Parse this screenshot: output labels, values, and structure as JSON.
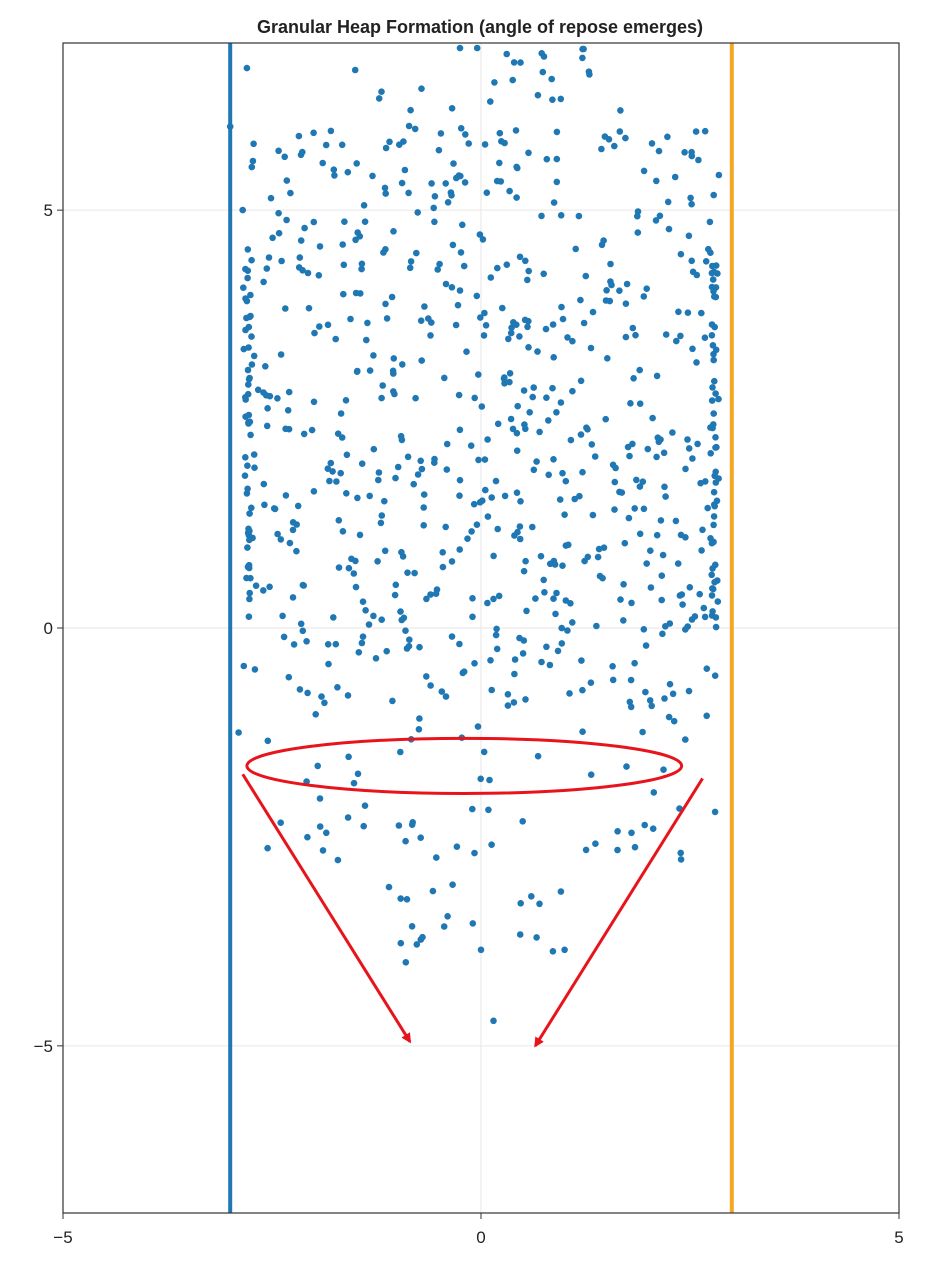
{
  "chart_data": {
    "type": "scatter",
    "title": "Granular Heap Formation (angle of repose emerges)",
    "xlabel": "",
    "ylabel": "",
    "xlim": [
      -5,
      5
    ],
    "ylim": [
      -7,
      7
    ],
    "x_ticks": [
      -5,
      0,
      5
    ],
    "y_ticks": [
      -5,
      0,
      5
    ],
    "x_tick_labels": [
      "−5",
      "0",
      "5"
    ],
    "y_tick_labels": [
      "−5",
      "0",
      "5"
    ],
    "grid": true,
    "legend": "none",
    "marker_color": "#1f77b4",
    "walls": [
      {
        "x": -3.0,
        "color": "#1f77b4"
      },
      {
        "x": 3.0,
        "color": "#f5a623"
      }
    ],
    "annotation": {
      "type": "ellipse-with-arrows",
      "color": "#e8141c",
      "ellipse": {
        "cx": -0.2,
        "cy": -1.65,
        "rx": 2.6,
        "ry": 0.33
      },
      "arrows": [
        {
          "from": [
            -2.85,
            -1.75
          ],
          "to": [
            -0.85,
            -4.95
          ]
        },
        {
          "from": [
            2.65,
            -1.8
          ],
          "to": [
            0.65,
            -5.0
          ]
        }
      ]
    },
    "scatter_generation": {
      "dense_region": {
        "x_range": [
          -2.85,
          2.85
        ],
        "y_range": [
          -0.9,
          6.0
        ],
        "count": 650
      },
      "top_region": {
        "x_range": [
          -1.8,
          1.8
        ],
        "y_range": [
          5.9,
          7.0
        ],
        "count": 30
      },
      "wall_columns": {
        "left_x": -2.82,
        "right_x": 2.82,
        "y_range": [
          0.0,
          4.5
        ],
        "count_each": 40
      },
      "lower_region": {
        "x_range": [
          -2.6,
          2.6
        ],
        "y_range": [
          -2.8,
          -0.9
        ],
        "count": 60
      },
      "funnel_region": {
        "x_range": [
          -1.2,
          1.3
        ],
        "y_range": [
          -4.0,
          -2.8
        ],
        "count": 16
      }
    },
    "extra_points": [
      [
        -2.8,
        6.7
      ],
      [
        -2.85,
        5.0
      ],
      [
        -3.0,
        6.0
      ],
      [
        2.6,
        5.6
      ],
      [
        2.8,
        -2.2
      ],
      [
        -0.9,
        -4.0
      ],
      [
        0.15,
        -4.7
      ],
      [
        0.0,
        -3.85
      ],
      [
        1.0,
        -3.85
      ],
      [
        -0.7,
        -3.7
      ],
      [
        -1.1,
        -3.1
      ],
      [
        -0.4,
        -3.45
      ],
      [
        0.7,
        -3.3
      ],
      [
        1.8,
        -2.45
      ],
      [
        -1.85,
        -2.45
      ],
      [
        -2.55,
        -1.35
      ],
      [
        2.7,
        -1.05
      ],
      [
        -2.9,
        -1.25
      ]
    ]
  }
}
